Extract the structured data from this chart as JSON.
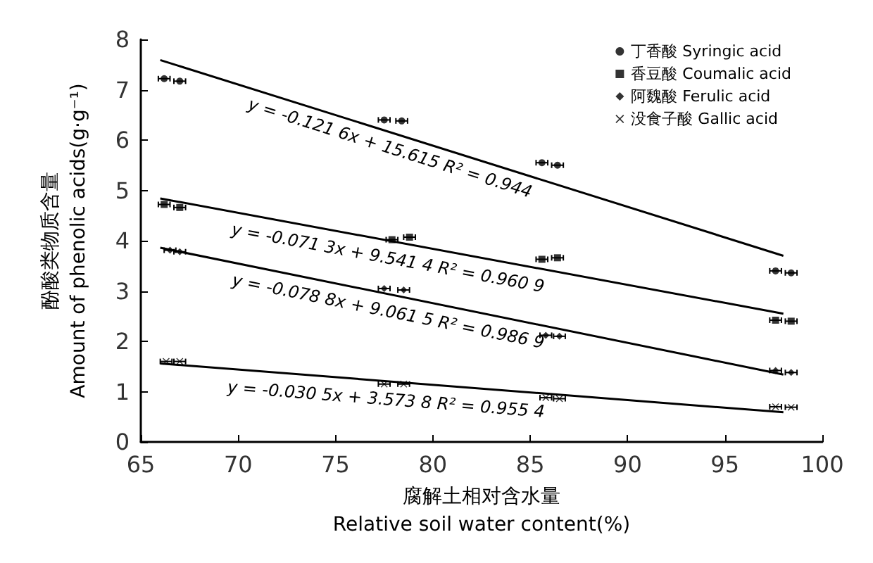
{
  "chart_data": {
    "type": "scatter",
    "xlabel": "腐解土相对含水量\nRelative soil water content(%)",
    "ylabel": "酚酸类物质含量\nAmount of phenolic acids(g·g⁻¹)",
    "xlim": [
      65,
      100
    ],
    "xticks": [
      65,
      70,
      75,
      80,
      85,
      90,
      95,
      100
    ],
    "ylim": [
      0,
      8
    ],
    "yticks": [
      0,
      1,
      2,
      3,
      4,
      5,
      6,
      7,
      8
    ],
    "grid": false,
    "legend": "top right",
    "series": [
      {
        "name": "丁香酸 Syringic acid",
        "color": "#000000",
        "marker": "circle",
        "x": [
          66.2,
          67.0,
          77.5,
          78.4,
          85.6,
          86.4,
          97.6,
          98.4
        ],
        "values": [
          7.22,
          7.17,
          6.4,
          6.38,
          5.55,
          5.5,
          3.4,
          3.36
        ],
        "xerrors": [
          0.3,
          0.3,
          0.3,
          0.3,
          0.3,
          0.3,
          0.3,
          0.3
        ]
      },
      {
        "name": "香豆酸 Coumalic acid",
        "color": "#000000",
        "marker": "square",
        "x": [
          66.2,
          67.0,
          77.9,
          78.8,
          85.6,
          86.4,
          97.6,
          98.4
        ],
        "values": [
          4.72,
          4.66,
          4.02,
          4.07,
          3.63,
          3.66,
          2.42,
          2.4
        ],
        "xerrors": [
          0.3,
          0.3,
          0.3,
          0.3,
          0.3,
          0.3,
          0.3,
          0.3
        ]
      },
      {
        "name": "阿魏酸 Ferulic acid",
        "color": "#000000",
        "marker": "diamond",
        "x": [
          66.5,
          67.0,
          77.5,
          78.5,
          85.8,
          86.5,
          97.6,
          98.4
        ],
        "values": [
          3.81,
          3.78,
          3.05,
          3.02,
          2.12,
          2.1,
          1.42,
          1.38
        ],
        "xerrors": [
          0.3,
          0.3,
          0.3,
          0.3,
          0.3,
          0.3,
          0.3,
          0.3
        ]
      },
      {
        "name": "没食子酸 Gallic acid",
        "color": "#000000",
        "marker": "cross",
        "x": [
          66.3,
          67.0,
          77.5,
          78.5,
          85.8,
          86.5,
          97.6,
          98.4
        ],
        "values": [
          1.6,
          1.6,
          1.15,
          1.15,
          0.88,
          0.86,
          0.7,
          0.69
        ],
        "xerrors": [
          0.3,
          0.3,
          0.3,
          0.3,
          0.3,
          0.3,
          0.3,
          0.3
        ]
      },
      {
        "type": "line",
        "color": "#000000",
        "marker": "none",
        "x": [
          66,
          98
        ],
        "values": [
          7.59,
          3.7
        ]
      },
      {
        "type": "line",
        "color": "#000000",
        "marker": "none",
        "x": [
          66,
          98
        ],
        "values": [
          4.84,
          2.55
        ]
      },
      {
        "type": "line",
        "color": "#000000",
        "marker": "none",
        "x": [
          66,
          98
        ],
        "values": [
          3.86,
          1.34
        ]
      },
      {
        "type": "line",
        "color": "#000000",
        "marker": "none",
        "x": [
          66,
          98
        ],
        "values": [
          1.56,
          0.59
        ]
      }
    ],
    "annotations": [
      "y = -0.121 6x + 15.615 R² = 0.944",
      "y = -0.071 3x + 9.541 4 R² = 0.960 9",
      "y = -0.078 8x + 9.061 5 R² = 0.986 9",
      "y = -0.030 5x + 3.573 8 R² = 0.955 4"
    ]
  }
}
